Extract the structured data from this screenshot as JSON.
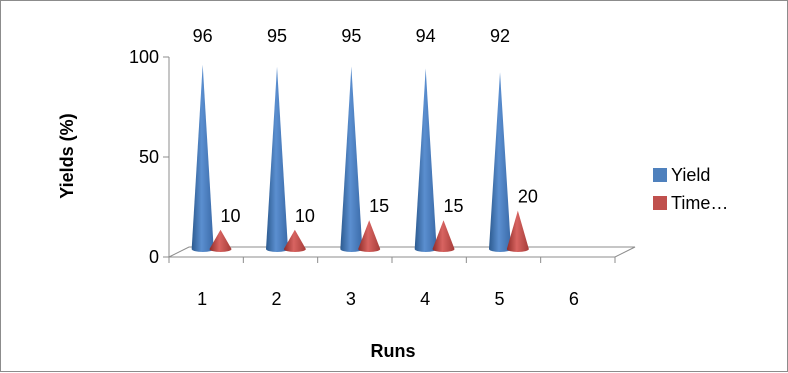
{
  "chart_data": {
    "type": "bar",
    "style": "3d-cone",
    "categories": [
      "1",
      "2",
      "3",
      "4",
      "5",
      "6"
    ],
    "series": [
      {
        "name": "Yield",
        "values": [
          96,
          95,
          95,
          94,
          92,
          null
        ],
        "color": "#4f81bd"
      },
      {
        "name": "Time…",
        "values": [
          10,
          10,
          15,
          15,
          20,
          null
        ],
        "color": "#c0504d"
      }
    ],
    "xlabel": "Runs",
    "ylabel": "Yields (%)",
    "ylim": [
      0,
      100
    ],
    "yticks": [
      "0",
      "50",
      "100"
    ],
    "grid": false,
    "legend": "right"
  }
}
